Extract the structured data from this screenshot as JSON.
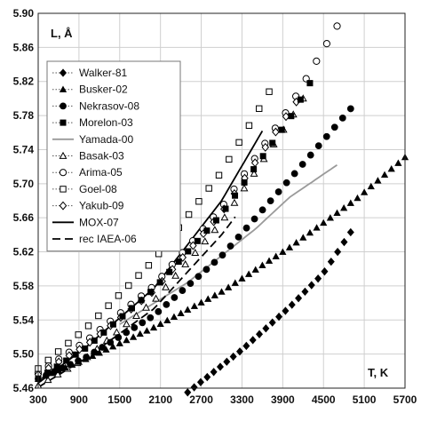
{
  "chart_data": {
    "type": "scatter",
    "title": "",
    "xlabel": "T, K",
    "ylabel": "L, Å",
    "xlim": [
      300,
      5700
    ],
    "ylim": [
      5.46,
      5.9
    ],
    "grid": true,
    "legend_position": "top-left",
    "x_ticks": [
      "300",
      "900",
      "1500",
      "2100",
      "2700",
      "3300",
      "3900",
      "4500",
      "5100",
      "5700"
    ],
    "y_ticks": [
      "5.46",
      "5.50",
      "5.54",
      "5.58",
      "5.62",
      "5.66",
      "5.70",
      "5.74",
      "5.78",
      "5.82",
      "5.86",
      "5.90"
    ],
    "series": [
      {
        "name": "Walker-81",
        "marker": "diamond-filled",
        "color": "#000000",
        "x_start": 2500,
        "x_end": 4900,
        "points": 26,
        "x": [
          2500,
          3300,
          4000,
          4500,
          4900
        ],
        "y": [
          5.455,
          5.505,
          5.555,
          5.595,
          5.643
        ]
      },
      {
        "name": "Busker-02",
        "marker": "triangle-filled",
        "color": "#000000",
        "x_start": 300,
        "x_end": 5700,
        "points": 55,
        "x": [
          300,
          1000,
          2000,
          3000,
          4000,
          5000,
          5700
        ],
        "y": [
          5.471,
          5.494,
          5.531,
          5.573,
          5.625,
          5.683,
          5.731
        ]
      },
      {
        "name": "Nekrasov-08",
        "marker": "circle-filled",
        "color": "#000000",
        "x_start": 300,
        "x_end": 4900,
        "points": 40,
        "x": [
          300,
          1000,
          2000,
          3000,
          4000,
          4900
        ],
        "y": [
          5.471,
          5.496,
          5.545,
          5.615,
          5.705,
          5.788
        ]
      },
      {
        "name": "Morelon-03",
        "marker": "square-filled",
        "color": "#000000",
        "x_start": 300,
        "x_end": 4300,
        "points": 30,
        "x": [
          300,
          1000,
          2000,
          3000,
          4000,
          4300
        ],
        "y": [
          5.471,
          5.507,
          5.576,
          5.664,
          5.776,
          5.818
        ]
      },
      {
        "name": "Yamada-00",
        "marker": "line",
        "color": "#9a9a9a",
        "x": [
          1500,
          2500,
          3500,
          4000,
          4700
        ],
        "y": [
          5.535,
          5.584,
          5.647,
          5.684,
          5.722
        ]
      },
      {
        "name": "Basak-03",
        "marker": "triangle-open",
        "color": "#000000",
        "x_start": 300,
        "x_end": 4200,
        "points": 28,
        "x": [
          300,
          1000,
          2000,
          3000,
          4000,
          4200
        ],
        "y": [
          5.463,
          5.495,
          5.562,
          5.655,
          5.774,
          5.8
        ]
      },
      {
        "name": "Arima-05",
        "marker": "circle-open",
        "color": "#000000",
        "x_start": 300,
        "x_end": 4700,
        "points": 30,
        "x": [
          300,
          1000,
          2000,
          3000,
          4000,
          4700
        ],
        "y": [
          5.478,
          5.515,
          5.58,
          5.672,
          5.79,
          5.885
        ]
      },
      {
        "name": "Goel-08",
        "marker": "square-open",
        "color": "#000000",
        "x_start": 300,
        "x_end": 3700,
        "points": 24,
        "x": [
          300,
          1000,
          2000,
          3000,
          3700
        ],
        "y": [
          5.483,
          5.53,
          5.61,
          5.714,
          5.808
        ]
      },
      {
        "name": "Yakub-09",
        "marker": "diamond-open",
        "color": "#000000",
        "x_start": 300,
        "x_end": 4100,
        "points": 26,
        "x": [
          300,
          1000,
          2000,
          3000,
          4000,
          4100
        ],
        "y": [
          5.476,
          5.51,
          5.574,
          5.666,
          5.785,
          5.796
        ]
      },
      {
        "name": "MOX-07",
        "marker": "line-solid",
        "color": "#000000",
        "x": [
          300,
          1000,
          2000,
          3000,
          3600
        ],
        "y": [
          5.466,
          5.508,
          5.577,
          5.68,
          5.762
        ]
      },
      {
        "name": "rec IAEA-06",
        "marker": "line-dashed",
        "color": "#000000",
        "x": [
          300,
          1000,
          2000,
          3000,
          3200
        ],
        "y": [
          5.461,
          5.495,
          5.553,
          5.64,
          5.661
        ]
      }
    ]
  }
}
